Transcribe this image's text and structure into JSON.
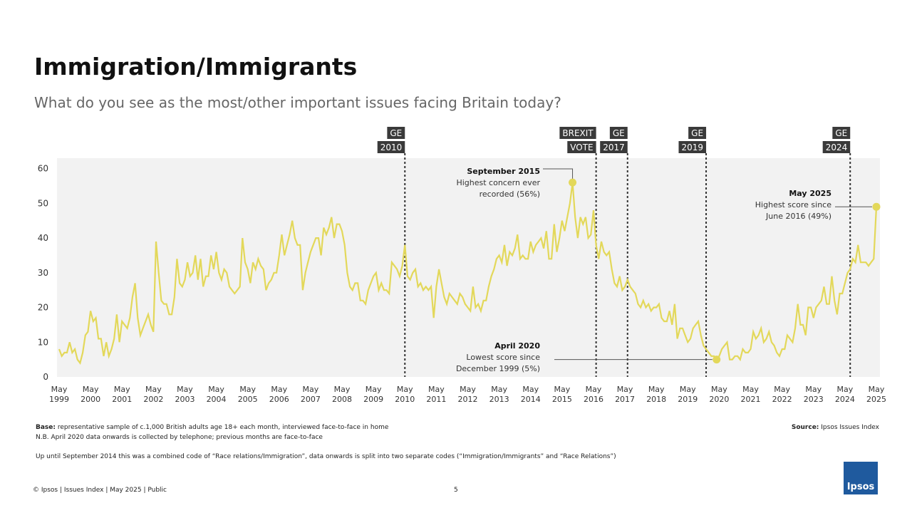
{
  "header": {
    "title": "Immigration/Immigrants",
    "subtitle": "What do you see as the most/other important issues facing Britain today?"
  },
  "chart_data": {
    "type": "line",
    "color": "#e3d85a",
    "background": "#f2f2f2",
    "ylim": [
      0,
      63
    ],
    "yticks": [
      0,
      10,
      20,
      30,
      40,
      50,
      60
    ],
    "xlim": [
      "1999-05",
      "2025-05"
    ],
    "xticks": [
      {
        "value": "1999-05",
        "label": "May 1999"
      },
      {
        "value": "2000-05",
        "label": "May 2000"
      },
      {
        "value": "2001-05",
        "label": "May 2001"
      },
      {
        "value": "2002-05",
        "label": "May 2002"
      },
      {
        "value": "2003-05",
        "label": "May 2003"
      },
      {
        "value": "2004-05",
        "label": "May 2004"
      },
      {
        "value": "2005-05",
        "label": "May 2005"
      },
      {
        "value": "2006-05",
        "label": "May 2006"
      },
      {
        "value": "2007-05",
        "label": "May 2007"
      },
      {
        "value": "2008-05",
        "label": "May 2008"
      },
      {
        "value": "2009-05",
        "label": "May 2009"
      },
      {
        "value": "2010-05",
        "label": "May 2010"
      },
      {
        "value": "2011-05",
        "label": "May 2011"
      },
      {
        "value": "2012-05",
        "label": "May 2012"
      },
      {
        "value": "2013-05",
        "label": "May 2013"
      },
      {
        "value": "2014-05",
        "label": "May 2014"
      },
      {
        "value": "2015-05",
        "label": "May 2015"
      },
      {
        "value": "2016-05",
        "label": "May 2016"
      },
      {
        "value": "2017-05",
        "label": "May 2017"
      },
      {
        "value": "2018-05",
        "label": "May 2018"
      },
      {
        "value": "2019-05",
        "label": "May 2019"
      },
      {
        "value": "2020-05",
        "label": "May 2020"
      },
      {
        "value": "2021-05",
        "label": "May 2021"
      },
      {
        "value": "2022-05",
        "label": "May 2022"
      },
      {
        "value": "2023-05",
        "label": "May 2023"
      },
      {
        "value": "2024-05",
        "label": "May 2024"
      },
      {
        "value": "2025-05",
        "label": "May 2025"
      }
    ],
    "x": [
      "1999-05",
      "1999-06",
      "1999-07",
      "1999-08",
      "1999-09",
      "1999-10",
      "1999-11",
      "1999-12",
      "2000-01",
      "2000-02",
      "2000-03",
      "2000-04",
      "2000-05",
      "2000-06",
      "2000-07",
      "2000-08",
      "2000-09",
      "2000-10",
      "2000-11",
      "2000-12",
      "2001-01",
      "2001-02",
      "2001-03",
      "2001-04",
      "2001-05",
      "2001-06",
      "2001-07",
      "2001-08",
      "2001-09",
      "2001-10",
      "2001-11",
      "2001-12",
      "2002-01",
      "2002-02",
      "2002-03",
      "2002-04",
      "2002-05",
      "2002-06",
      "2002-07",
      "2002-08",
      "2002-09",
      "2002-10",
      "2002-11",
      "2002-12",
      "2003-01",
      "2003-02",
      "2003-03",
      "2003-04",
      "2003-05",
      "2003-06",
      "2003-07",
      "2003-08",
      "2003-09",
      "2003-10",
      "2003-11",
      "2003-12",
      "2004-01",
      "2004-02",
      "2004-03",
      "2004-04",
      "2004-05",
      "2004-06",
      "2004-07",
      "2004-08",
      "2004-09",
      "2004-10",
      "2004-11",
      "2004-12",
      "2005-01",
      "2005-02",
      "2005-03",
      "2005-04",
      "2005-05",
      "2005-06",
      "2005-07",
      "2005-08",
      "2005-09",
      "2005-10",
      "2005-11",
      "2005-12",
      "2006-01",
      "2006-02",
      "2006-03",
      "2006-04",
      "2006-05",
      "2006-06",
      "2006-07",
      "2006-08",
      "2006-09",
      "2006-10",
      "2006-11",
      "2006-12",
      "2007-01",
      "2007-02",
      "2007-03",
      "2007-04",
      "2007-05",
      "2007-06",
      "2007-07",
      "2007-08",
      "2007-09",
      "2007-10",
      "2007-11",
      "2007-12",
      "2008-01",
      "2008-02",
      "2008-03",
      "2008-04",
      "2008-05",
      "2008-06",
      "2008-07",
      "2008-08",
      "2008-09",
      "2008-10",
      "2008-11",
      "2008-12",
      "2009-01",
      "2009-02",
      "2009-03",
      "2009-04",
      "2009-05",
      "2009-06",
      "2009-07",
      "2009-08",
      "2009-09",
      "2009-10",
      "2009-11",
      "2009-12",
      "2010-01",
      "2010-02",
      "2010-03",
      "2010-04",
      "2010-05",
      "2010-06",
      "2010-07",
      "2010-08",
      "2010-09",
      "2010-10",
      "2010-11",
      "2010-12",
      "2011-01",
      "2011-02",
      "2011-03",
      "2011-04",
      "2011-05",
      "2011-06",
      "2011-07",
      "2011-08",
      "2011-09",
      "2011-10",
      "2011-11",
      "2011-12",
      "2012-01",
      "2012-02",
      "2012-03",
      "2012-04",
      "2012-05",
      "2012-06",
      "2012-07",
      "2012-08",
      "2012-09",
      "2012-10",
      "2012-11",
      "2012-12",
      "2013-01",
      "2013-02",
      "2013-03",
      "2013-04",
      "2013-05",
      "2013-06",
      "2013-07",
      "2013-08",
      "2013-09",
      "2013-10",
      "2013-11",
      "2013-12",
      "2014-01",
      "2014-02",
      "2014-03",
      "2014-04",
      "2014-05",
      "2014-06",
      "2014-07",
      "2014-08",
      "2014-09",
      "2014-10",
      "2014-11",
      "2014-12",
      "2015-01",
      "2015-02",
      "2015-03",
      "2015-04",
      "2015-05",
      "2015-06",
      "2015-07",
      "2015-08",
      "2015-09",
      "2015-10",
      "2015-11",
      "2015-12",
      "2016-01",
      "2016-02",
      "2016-03",
      "2016-04",
      "2016-05",
      "2016-06",
      "2016-07",
      "2016-08",
      "2016-09",
      "2016-10",
      "2016-11",
      "2016-12",
      "2017-01",
      "2017-02",
      "2017-03",
      "2017-04",
      "2017-05",
      "2017-06",
      "2017-07",
      "2017-08",
      "2017-09",
      "2017-10",
      "2017-11",
      "2017-12",
      "2018-01",
      "2018-02",
      "2018-03",
      "2018-04",
      "2018-05",
      "2018-06",
      "2018-07",
      "2018-08",
      "2018-09",
      "2018-10",
      "2018-11",
      "2018-12",
      "2019-01",
      "2019-02",
      "2019-03",
      "2019-04",
      "2019-05",
      "2019-06",
      "2019-07",
      "2019-08",
      "2019-09",
      "2019-10",
      "2019-11",
      "2019-12",
      "2020-01",
      "2020-02",
      "2020-03",
      "2020-04",
      "2020-05",
      "2020-06",
      "2020-07",
      "2020-08",
      "2020-09",
      "2020-10",
      "2020-11",
      "2020-12",
      "2021-01",
      "2021-02",
      "2021-03",
      "2021-04",
      "2021-05",
      "2021-06",
      "2021-07",
      "2021-08",
      "2021-09",
      "2021-10",
      "2021-11",
      "2021-12",
      "2022-01",
      "2022-02",
      "2022-03",
      "2022-04",
      "2022-05",
      "2022-06",
      "2022-07",
      "2022-08",
      "2022-09",
      "2022-10",
      "2022-11",
      "2022-12",
      "2023-01",
      "2023-02",
      "2023-03",
      "2023-04",
      "2023-05",
      "2023-06",
      "2023-07",
      "2023-08",
      "2023-09",
      "2023-10",
      "2023-11",
      "2023-12",
      "2024-01",
      "2024-02",
      "2024-03",
      "2024-04",
      "2024-05",
      "2024-06",
      "2024-07",
      "2024-08",
      "2024-09",
      "2024-10",
      "2024-11",
      "2024-12",
      "2025-01",
      "2025-02",
      "2025-03",
      "2025-04",
      "2025-05"
    ],
    "values": [
      8,
      6,
      7,
      7,
      10,
      7,
      8,
      5,
      4,
      7,
      12,
      13,
      19,
      16,
      17,
      11,
      11,
      6,
      10,
      6,
      8,
      11,
      18,
      10,
      16,
      15,
      14,
      17,
      23,
      27,
      17,
      12,
      14,
      16,
      18,
      15,
      13,
      39,
      30,
      22,
      21,
      21,
      18,
      18,
      23,
      34,
      27,
      26,
      28,
      33,
      29,
      30,
      35,
      28,
      34,
      26,
      29,
      29,
      35,
      31,
      36,
      30,
      28,
      31,
      30,
      26,
      25,
      24,
      25,
      26,
      40,
      33,
      31,
      27,
      33,
      31,
      34,
      32,
      31,
      25,
      27,
      28,
      30,
      30,
      35,
      41,
      35,
      38,
      41,
      45,
      40,
      38,
      38,
      25,
      30,
      33,
      36,
      38,
      40,
      40,
      35,
      43,
      41,
      43,
      46,
      40,
      44,
      44,
      42,
      38,
      30,
      26,
      25,
      27,
      27,
      22,
      22,
      21,
      25,
      27,
      29,
      30,
      25,
      27,
      25,
      25,
      24,
      33,
      32,
      31,
      29,
      32,
      38,
      29,
      28,
      30,
      31,
      26,
      27,
      25,
      26,
      25,
      26,
      17,
      26,
      31,
      27,
      23,
      21,
      24,
      23,
      22,
      21,
      24,
      23,
      21,
      20,
      19,
      26,
      20,
      21,
      19,
      22,
      22,
      26,
      29,
      31,
      34,
      35,
      33,
      38,
      32,
      36,
      35,
      37,
      41,
      34,
      35,
      34,
      34,
      39,
      36,
      38,
      39,
      40,
      37,
      42,
      34,
      34,
      44,
      36,
      40,
      45,
      42,
      46,
      50,
      56,
      46,
      40,
      46,
      44,
      46,
      40,
      41,
      48,
      38,
      34,
      39,
      36,
      35,
      36,
      31,
      27,
      26,
      29,
      25,
      26,
      28,
      26,
      25,
      24,
      21,
      20,
      22,
      20,
      21,
      19,
      20,
      20,
      21,
      17,
      16,
      16,
      19,
      15,
      21,
      11,
      14,
      14,
      12,
      10,
      11,
      14,
      15,
      16,
      12,
      9,
      8,
      7,
      6,
      6,
      5,
      6,
      8,
      9,
      10,
      5,
      5,
      6,
      6,
      5,
      8,
      7,
      7,
      8,
      13,
      11,
      12,
      14,
      10,
      11,
      13,
      10,
      9,
      7,
      6,
      8,
      8,
      12,
      11,
      10,
      14,
      21,
      15,
      15,
      12,
      20,
      20,
      17,
      20,
      21,
      22,
      26,
      21,
      21,
      29,
      22,
      18,
      24,
      24,
      27,
      30,
      31,
      34,
      33,
      38,
      33,
      33,
      33,
      32,
      33,
      34,
      49
    ],
    "events": [
      {
        "x": "2010-05",
        "labels": [
          "GE",
          "2010"
        ]
      },
      {
        "x": "2016-06",
        "labels": [
          "BREXIT",
          "VOTE"
        ]
      },
      {
        "x": "2017-06",
        "labels": [
          "GE",
          "2017"
        ]
      },
      {
        "x": "2019-12",
        "labels": [
          "GE",
          "2019"
        ]
      },
      {
        "x": "2024-07",
        "labels": [
          "GE",
          "2024"
        ]
      }
    ],
    "annotations": [
      {
        "title": "September 2015",
        "lines": [
          "Highest concern ever",
          "recorded (56%)"
        ]
      },
      {
        "title": "April 2020",
        "lines": [
          "Lowest score since",
          "December 1999 (5%)"
        ]
      },
      {
        "title": "May 2025",
        "lines": [
          "Highest score since",
          "June 2016 (49%)"
        ]
      }
    ]
  },
  "footer": {
    "base_label": "Base:",
    "base_text": "representative sample of c.1,000 British adults age 18+ each month, interviewed face-to-face in home",
    "note": "N.B. April 2020 data onwards is collected by telephone; previous months are face-to-face",
    "note2": "Up until September 2014 this was a combined code of “Race relations/Immigration”, data onwards is split into two separate codes (“Immigration/Immigrants” and “Race Relations”)",
    "source_label": "Source:",
    "source_text": "Ipsos Issues Index",
    "copyright": "© Ipsos | Issues Index | May 2025 | Public",
    "page": "5",
    "logo": "Ipsos"
  }
}
